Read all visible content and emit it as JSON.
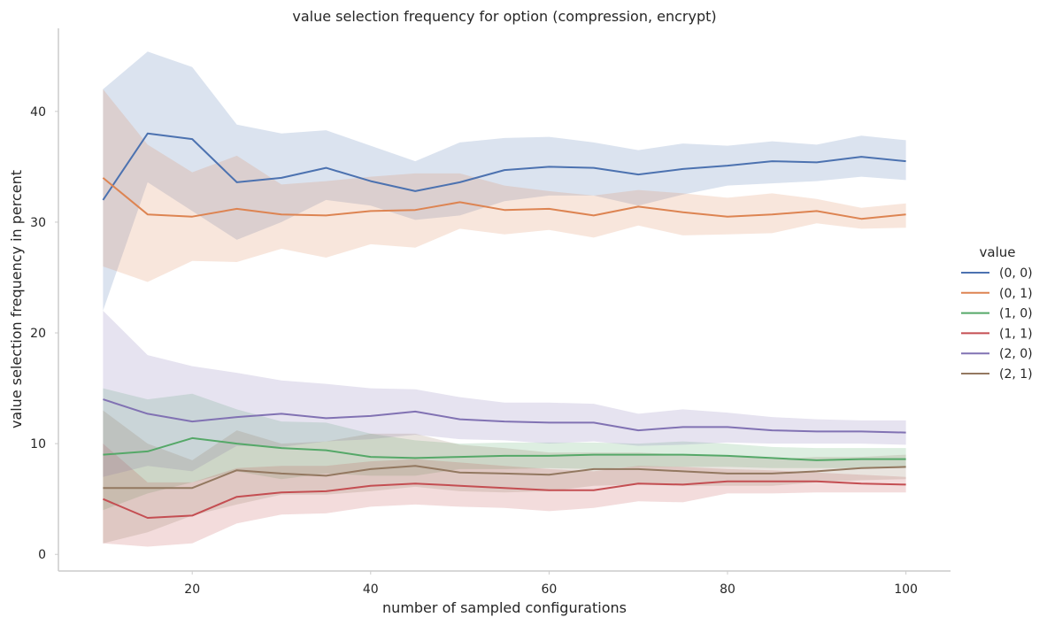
{
  "chart_data": {
    "type": "line",
    "title": "value selection frequency for option (compression, encrypt)",
    "xlabel": "number of sampled configurations",
    "ylabel": "value selection frequency in percent",
    "xlim": [
      5,
      105
    ],
    "ylim": [
      -1.5,
      47.5
    ],
    "xticks": [
      20,
      40,
      60,
      80,
      100
    ],
    "yticks": [
      0,
      10,
      20,
      30,
      40
    ],
    "grid": false,
    "legend": {
      "title": "value",
      "placement": "right"
    },
    "x": [
      10,
      15,
      20,
      25,
      30,
      35,
      40,
      45,
      50,
      55,
      60,
      65,
      70,
      75,
      80,
      85,
      90,
      95,
      100
    ],
    "series": [
      {
        "name": "(0, 0)",
        "color": "#4c72b0",
        "values": [
          32,
          38,
          37.5,
          33.6,
          34,
          34.9,
          33.7,
          32.8,
          33.6,
          34.7,
          35,
          34.9,
          34.3,
          34.8,
          35.1,
          35.5,
          35.4,
          35.9,
          35.5
        ],
        "ci_lower": [
          22,
          33.6,
          31,
          28.4,
          30,
          32,
          31.5,
          30.2,
          30.6,
          31.9,
          32.4,
          32.4,
          31.5,
          32.5,
          33.3,
          33.5,
          33.7,
          34.1,
          33.8
        ],
        "ci_upper": [
          42,
          45.4,
          44,
          38.8,
          38,
          38.3,
          36.9,
          35.5,
          37.2,
          37.6,
          37.7,
          37.2,
          36.5,
          37.1,
          36.9,
          37.3,
          37,
          37.8,
          37.4
        ]
      },
      {
        "name": "(0, 1)",
        "color": "#dd8452",
        "values": [
          34,
          30.7,
          30.5,
          31.2,
          30.7,
          30.6,
          31,
          31.1,
          31.8,
          31.1,
          31.2,
          30.6,
          31.4,
          30.9,
          30.5,
          30.7,
          31,
          30.3,
          30.7
        ],
        "ci_lower": [
          26,
          24.6,
          26.5,
          26.4,
          27.6,
          26.8,
          28,
          27.7,
          29.4,
          28.9,
          29.3,
          28.6,
          29.7,
          28.8,
          28.9,
          29,
          29.9,
          29.4,
          29.5
        ],
        "ci_upper": [
          42,
          37,
          34.5,
          36,
          33.4,
          33.7,
          34.1,
          34.4,
          34.4,
          33.3,
          32.8,
          32.4,
          32.9,
          32.6,
          32.2,
          32.6,
          32.1,
          31.3,
          31.7
        ]
      },
      {
        "name": "(1, 0)",
        "color": "#55a868",
        "values": [
          9,
          9.3,
          10.5,
          10,
          9.6,
          9.4,
          8.8,
          8.7,
          8.8,
          8.9,
          8.9,
          9,
          9,
          9,
          8.9,
          8.7,
          8.5,
          8.6,
          8.6
        ],
        "ci_lower": [
          4,
          5.5,
          6.5,
          7.5,
          6.8,
          7.3,
          7.1,
          7.1,
          7.7,
          7.7,
          7.8,
          7.7,
          7.9,
          7.9,
          7.9,
          7.8,
          7.8,
          7.8,
          7.8
        ],
        "ci_upper": [
          15,
          14,
          14.5,
          13.1,
          12,
          11.9,
          10.9,
          10.3,
          10,
          10.1,
          10.1,
          10.1,
          10,
          10.2,
          10,
          9.7,
          9.6,
          9.6,
          9.6
        ]
      },
      {
        "name": "(1, 1)",
        "color": "#c44e52",
        "values": [
          5,
          3.3,
          3.5,
          5.2,
          5.6,
          5.7,
          6.2,
          6.4,
          6.2,
          6,
          5.8,
          5.8,
          6.4,
          6.3,
          6.6,
          6.6,
          6.6,
          6.4,
          6.3
        ],
        "ci_lower": [
          1,
          0.7,
          1,
          2.8,
          3.6,
          3.7,
          4.3,
          4.5,
          4.3,
          4.2,
          3.9,
          4.2,
          4.8,
          4.7,
          5.5,
          5.5,
          5.6,
          5.6,
          5.6
        ],
        "ci_upper": [
          10,
          6.5,
          6.5,
          7.8,
          8,
          8,
          8.4,
          8.6,
          8.3,
          8,
          7.7,
          7.5,
          8,
          7.9,
          7.7,
          7.6,
          7.4,
          7.2,
          7
        ]
      },
      {
        "name": "(2, 0)",
        "color": "#8172b3",
        "values": [
          14,
          12.7,
          12,
          12.4,
          12.7,
          12.3,
          12.5,
          12.9,
          12.2,
          12,
          11.9,
          11.9,
          11.2,
          11.5,
          11.5,
          11.2,
          11.1,
          11.1,
          11
        ],
        "ci_lower": [
          7,
          8,
          7.5,
          9.8,
          9.7,
          10.2,
          10.4,
          10.8,
          10.4,
          10.3,
          10,
          10.2,
          9.8,
          9.9,
          10.1,
          10,
          10,
          10,
          9.9
        ],
        "ci_upper": [
          22,
          18,
          17,
          16.4,
          15.7,
          15.4,
          15,
          14.9,
          14.2,
          13.7,
          13.7,
          13.6,
          12.7,
          13.1,
          12.8,
          12.4,
          12.2,
          12.1,
          12.1
        ]
      },
      {
        "name": "(2, 1)",
        "color": "#937860",
        "values": [
          6,
          6,
          6,
          7.6,
          7.3,
          7.1,
          7.7,
          8,
          7.4,
          7.3,
          7.2,
          7.7,
          7.7,
          7.5,
          7.3,
          7.3,
          7.5,
          7.8,
          7.9
        ],
        "ci_lower": [
          1,
          2,
          3.5,
          4.5,
          5.4,
          5.4,
          5.7,
          6.1,
          5.7,
          5.6,
          5.7,
          6.2,
          6.3,
          6.2,
          6.2,
          6.2,
          6.5,
          6.7,
          6.8
        ],
        "ci_upper": [
          13,
          10,
          8.5,
          11.2,
          10,
          10.2,
          10.9,
          10.9,
          9.9,
          9.6,
          9.2,
          9.2,
          9.2,
          9,
          8.9,
          8.6,
          8.8,
          8.8,
          9
        ]
      }
    ]
  }
}
